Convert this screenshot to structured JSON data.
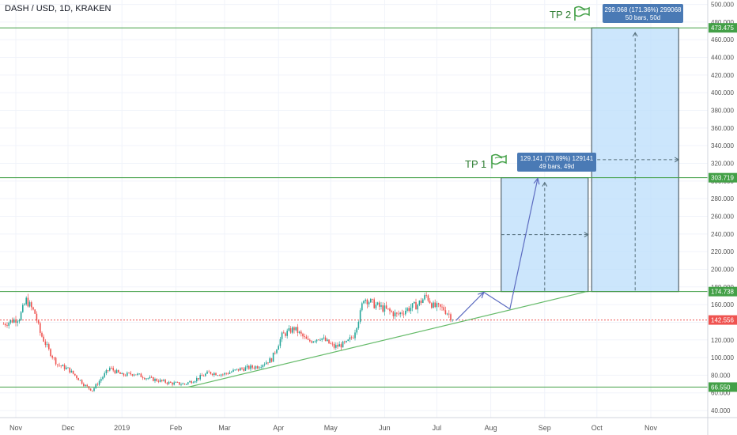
{
  "header": {
    "symbol_title": "DASH / USD, 1D, KRAKEN"
  },
  "colors": {
    "up": "#26a69a",
    "down": "#ef5350",
    "level_line": "#43a047",
    "trendline": "#66bb6a",
    "current_price_line": "#ef5350",
    "projection_fill": "#bbdefb",
    "projection_border": "#37474f",
    "arrow": "#5c6bc0",
    "info_box": "#4a7ab5",
    "tp_text": "#2e7d32",
    "flag": "#43a047"
  },
  "chart_data": {
    "type": "candlestick",
    "symbol": "DASH / USD",
    "interval": "1D",
    "exchange": "KRAKEN",
    "ylim": [
      32,
      505
    ],
    "y_ticks": [
      "40.000",
      "60.000",
      "80.000",
      "100.000",
      "120.000",
      "140.000",
      "160.000",
      "180.000",
      "200.000",
      "220.000",
      "240.000",
      "260.000",
      "280.000",
      "300.000",
      "320.000",
      "340.000",
      "360.000",
      "380.000",
      "400.000",
      "420.000",
      "440.000",
      "460.000",
      "480.000",
      "500.000"
    ],
    "x_ticks": [
      "Nov",
      "Dec",
      "2019",
      "Feb",
      "Mar",
      "Apr",
      "May",
      "Jun",
      "Jul",
      "Aug",
      "Sep",
      "Oct",
      "Nov"
    ],
    "closes_approx": [
      [
        "Oct 25",
        138
      ],
      [
        "Nov 3",
        145
      ],
      [
        "Nov 7",
        165
      ],
      [
        "Nov 12",
        150
      ],
      [
        "Nov 15",
        128
      ],
      [
        "Nov 20",
        108
      ],
      [
        "Nov 25",
        92
      ],
      [
        "Dec 1",
        87
      ],
      [
        "Dec 6",
        78
      ],
      [
        "Dec 11",
        68
      ],
      [
        "Dec 15",
        63
      ],
      [
        "Dec 20",
        76
      ],
      [
        "Dec 25",
        88
      ],
      [
        "Jan 1",
        80
      ],
      [
        "Jan 8",
        82
      ],
      [
        "Jan 15",
        77
      ],
      [
        "Jan 22",
        74
      ],
      [
        "Jan 29",
        71
      ],
      [
        "Feb 6",
        70
      ],
      [
        "Feb 12",
        75
      ],
      [
        "Feb 20",
        83
      ],
      [
        "Feb 28",
        81
      ],
      [
        "Mar 10",
        87
      ],
      [
        "Mar 20",
        90
      ],
      [
        "Mar 28",
        98
      ],
      [
        "Apr 3",
        125
      ],
      [
        "Apr 10",
        133
      ],
      [
        "Apr 18",
        118
      ],
      [
        "Apr 25",
        123
      ],
      [
        "May 3",
        112
      ],
      [
        "May 10",
        116
      ],
      [
        "May 14",
        125
      ],
      [
        "May 18",
        150
      ],
      [
        "May 20",
        168
      ],
      [
        "May 26",
        160
      ],
      [
        "Jun 1",
        155
      ],
      [
        "Jun 8",
        148
      ],
      [
        "Jun 14",
        155
      ],
      [
        "Jun 20",
        160
      ],
      [
        "Jun 25",
        170
      ],
      [
        "Jun 29",
        158
      ],
      [
        "Jul 5",
        155
      ],
      [
        "Jul 11",
        143
      ]
    ],
    "levels": [
      {
        "label": "473.475",
        "value": 473.475
      },
      {
        "label": "303.719",
        "value": 303.719
      },
      {
        "label": "174.738",
        "value": 174.738
      },
      {
        "label": "142.556",
        "value": 142.556
      },
      {
        "label": "66.550",
        "value": 66.55
      }
    ],
    "trendline": {
      "from": [
        "Feb 8",
        66.5
      ],
      "to": [
        "Sep 25",
        174.7
      ]
    },
    "projection_path": [
      [
        "Jul 12",
        142
      ],
      [
        "Jul 28",
        174
      ],
      [
        "Aug 12",
        155
      ],
      [
        "Aug 28",
        303
      ]
    ],
    "projection_boxes": [
      {
        "from": "Aug 7",
        "to": "Sep 26",
        "low": 174.738,
        "high": 303.719
      },
      {
        "from": "Sep 28",
        "to": "Nov 17",
        "low": 174.738,
        "high": 473.475
      }
    ],
    "annotations": [
      {
        "label": "TP 1",
        "info": [
          "129.141 (73.89%) 129141",
          "49 bars, 49d"
        ]
      },
      {
        "label": "TP 2",
        "info": [
          "299.068 (171.36%) 299068",
          "50 bars, 50d"
        ]
      }
    ]
  }
}
